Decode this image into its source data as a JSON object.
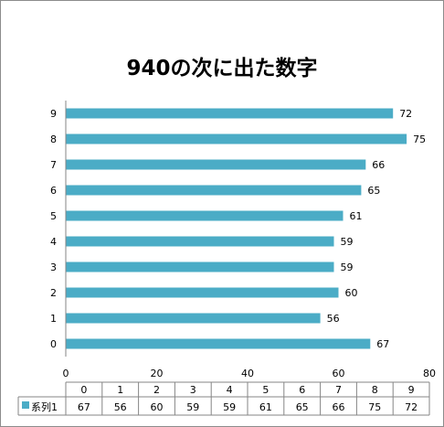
{
  "chart_data": {
    "type": "bar",
    "orientation": "horizontal",
    "title": "940の次に出た数字",
    "categories": [
      "0",
      "1",
      "2",
      "3",
      "4",
      "5",
      "6",
      "7",
      "8",
      "9"
    ],
    "series": [
      {
        "name": "系列1",
        "values": [
          67,
          56,
          60,
          59,
          59,
          61,
          65,
          66,
          75,
          72
        ],
        "color": "#4bacc6"
      }
    ],
    "xlim": [
      0,
      80
    ],
    "x_ticks": [
      "0",
      "20",
      "40",
      "60",
      "80"
    ],
    "data_labels": true,
    "data_table": true,
    "legend_key_in_table": true,
    "grid": false
  }
}
